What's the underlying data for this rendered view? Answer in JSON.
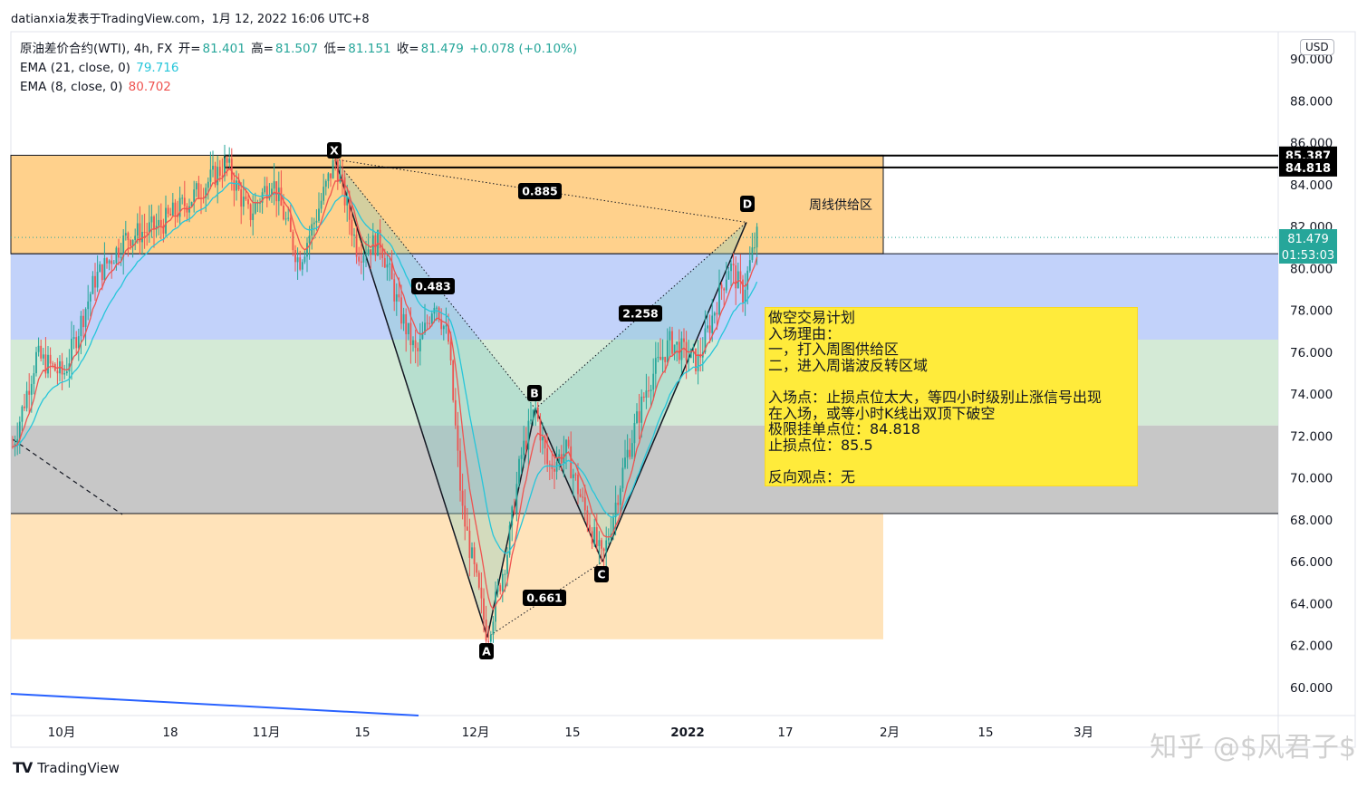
{
  "header": {
    "author_line": "datianxia发表于TradingView.com，1月 12, 2022 16:06 UTC+8"
  },
  "legend": {
    "symbol": "原油差价合约(WTI), 4h, FX",
    "open_label": "开=",
    "open": "81.401",
    "high_label": "高=",
    "high": "81.507",
    "low_label": "低=",
    "low": "81.151",
    "close_label": "收=",
    "close": "81.479",
    "change": "+0.078 (+0.10%)",
    "ema21_label": "EMA (21, close, 0)",
    "ema21_value": "79.716",
    "ema8_label": "EMA (8, close, 0)",
    "ema8_value": "80.702"
  },
  "currency_badge": "USD",
  "zone_label": "周线供给区",
  "plan": {
    "lines": [
      "做空交易计划",
      "入场理由：",
      "一，打入周图供给区",
      "二，进入周谐波反转区域",
      "",
      "入场点：止损点位太大，等四小时级别止涨信号出现",
      "在入场，或等小时K线出双顶下破空",
      "极限挂单点位：84.818",
      "止损点位：85.5",
      "",
      "反向观点：无"
    ]
  },
  "price_labels": {
    "top_line": "85.387",
    "second_line": "84.818",
    "last_price": "81.479",
    "countdown": "01:53:03"
  },
  "footer": {
    "logo_mark": "TV",
    "logo_text": "TradingView",
    "watermark": "知乎 @$风君子$"
  },
  "colors": {
    "bull": "#26a69a",
    "bear": "#ef5350",
    "ema21": "#26c6da",
    "ema8": "#ef5350",
    "supply_zone": "#ffcc80",
    "blue_zone": "#bbcdf9",
    "green_zone": "#cfe8d2",
    "grey_zone": "#bdbdbd",
    "lower_orange": "#ffe0b2",
    "pattern_fill": "#80cbc4",
    "last_price_bg": "#26a69a"
  },
  "chart_data": {
    "type": "candlestick",
    "timeframe": "4h",
    "y_axis": {
      "ticks": [
        "60.000",
        "62.000",
        "64.000",
        "66.000",
        "68.000",
        "70.000",
        "72.000",
        "74.000",
        "76.000",
        "78.000",
        "80.000",
        "82.000",
        "84.000",
        "86.000",
        "88.000",
        "90.000"
      ],
      "min": 59,
      "max": 91
    },
    "x_axis": {
      "ticks": [
        "10月",
        "18",
        "11月",
        "15",
        "12月",
        "15",
        "2022",
        "17",
        "2月",
        "15",
        "3月"
      ]
    },
    "harmonic_pattern": {
      "points": [
        {
          "label": "X",
          "price": 85.2
        },
        {
          "label": "A",
          "price": 62.4
        },
        {
          "label": "B",
          "price": 73.3
        },
        {
          "label": "C",
          "price": 66.0
        },
        {
          "label": "D",
          "price": 82.2
        }
      ],
      "ratios": [
        {
          "between": "XB",
          "value": "0.483"
        },
        {
          "between": "AC",
          "value": "0.661"
        },
        {
          "between": "BD",
          "value": "2.258"
        },
        {
          "between": "XD",
          "value": "0.885"
        }
      ]
    },
    "zones": [
      {
        "name": "supply",
        "from": 80.7,
        "to": 85.4
      },
      {
        "name": "blue",
        "from": 76.6,
        "to": 80.7
      },
      {
        "name": "green",
        "from": 72.5,
        "to": 76.6
      },
      {
        "name": "grey",
        "from": 68.3,
        "to": 72.5
      },
      {
        "name": "lower",
        "from": 62.3,
        "to": 68.3
      }
    ],
    "horizontal_levels": [
      85.387,
      84.818,
      81.479
    ],
    "last_close": 81.479
  }
}
